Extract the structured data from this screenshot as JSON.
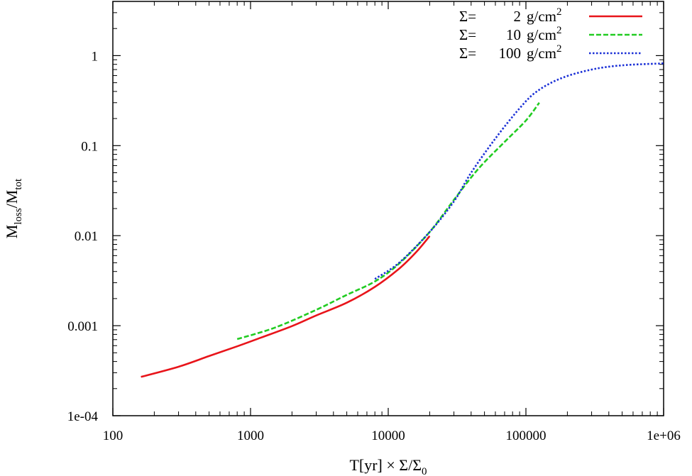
{
  "chart_data": {
    "type": "line",
    "title": "",
    "xlabel": {
      "main": "T[yr] × Σ/Σ",
      "sub": "0"
    },
    "ylabel": {
      "m1": "M",
      "s1": "loss",
      "mid": "/M",
      "s2": "tot"
    },
    "x_scale": "log",
    "y_scale": "log",
    "xlim": [
      100,
      1000000
    ],
    "ylim": [
      0.0001,
      4
    ],
    "x_ticks": [
      100,
      1000,
      10000,
      100000,
      1000000
    ],
    "x_tick_labels": [
      "100",
      "1000",
      "10000",
      "100000",
      "1e+06"
    ],
    "y_ticks": [
      0.0001,
      0.001,
      0.01,
      0.1,
      1
    ],
    "y_tick_labels": [
      "1e-04",
      "0.001",
      "0.01",
      "0.1",
      "1"
    ],
    "grid": false,
    "legend_position": "top-right",
    "series": [
      {
        "name": {
          "pre": "Σ=",
          "val": "2",
          "unit": "g/cm",
          "sup": "2"
        },
        "color": "#e8141a",
        "style": "solid",
        "points": [
          [
            160,
            0.00027
          ],
          [
            300,
            0.00035
          ],
          [
            500,
            0.00046
          ],
          [
            800,
            0.00059
          ],
          [
            1200,
            0.00074
          ],
          [
            2000,
            0.00099
          ],
          [
            3000,
            0.0013
          ],
          [
            5000,
            0.0018
          ],
          [
            8000,
            0.0027
          ],
          [
            12000,
            0.0043
          ],
          [
            16000,
            0.0066
          ],
          [
            20000,
            0.0099
          ]
        ]
      },
      {
        "name": {
          "pre": "Σ=",
          "val": "10",
          "unit": "g/cm",
          "sup": "2"
        },
        "color": "#22cc22",
        "style": "dashed",
        "points": [
          [
            800,
            0.00071
          ],
          [
            1500,
            0.00095
          ],
          [
            3000,
            0.0015
          ],
          [
            5000,
            0.0022
          ],
          [
            8000,
            0.0031
          ],
          [
            12000,
            0.0049
          ],
          [
            20000,
            0.011
          ],
          [
            30000,
            0.025
          ],
          [
            45000,
            0.055
          ],
          [
            70000,
            0.11
          ],
          [
            100000,
            0.19
          ],
          [
            125000,
            0.3
          ]
        ]
      },
      {
        "name": {
          "pre": "Σ=",
          "val": "100",
          "unit": "g/cm",
          "sup": "2"
        },
        "color": "#1a2fd6",
        "style": "dotted",
        "points": [
          [
            8000,
            0.0033
          ],
          [
            12000,
            0.005
          ],
          [
            20000,
            0.011
          ],
          [
            30000,
            0.024
          ],
          [
            40000,
            0.05
          ],
          [
            60000,
            0.12
          ],
          [
            90000,
            0.26
          ],
          [
            120000,
            0.4
          ],
          [
            180000,
            0.56
          ],
          [
            300000,
            0.7
          ],
          [
            500000,
            0.78
          ],
          [
            1000000,
            0.82
          ]
        ]
      }
    ]
  }
}
